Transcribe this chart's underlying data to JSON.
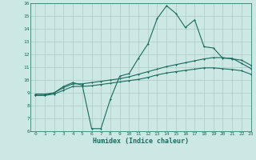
{
  "xlabel": "Humidex (Indice chaleur)",
  "ylabel": "",
  "bg_color": "#cce8e4",
  "grid_color": "#b0c8c4",
  "line_color": "#1a6b5e",
  "xlim": [
    -0.5,
    23
  ],
  "ylim": [
    6,
    16
  ],
  "xticks": [
    0,
    1,
    2,
    3,
    4,
    5,
    6,
    7,
    8,
    9,
    10,
    11,
    12,
    13,
    14,
    15,
    16,
    17,
    18,
    19,
    20,
    21,
    22,
    23
  ],
  "yticks": [
    6,
    7,
    8,
    9,
    10,
    11,
    12,
    13,
    14,
    15,
    16
  ],
  "series1_x": [
    0,
    1,
    2,
    3,
    4,
    5,
    6,
    7,
    8,
    9,
    10,
    11,
    12,
    13,
    14,
    15,
    16,
    17,
    18,
    19,
    20,
    21,
    22,
    23
  ],
  "series1_y": [
    8.8,
    8.8,
    9.0,
    9.5,
    9.8,
    9.6,
    6.2,
    6.2,
    8.5,
    10.3,
    10.5,
    11.7,
    12.8,
    14.8,
    15.8,
    15.2,
    14.1,
    14.7,
    12.6,
    12.5,
    11.7,
    11.7,
    11.3,
    10.9
  ],
  "series2_x": [
    0,
    1,
    2,
    3,
    4,
    5,
    6,
    7,
    8,
    9,
    10,
    11,
    12,
    13,
    14,
    15,
    16,
    17,
    18,
    19,
    20,
    21,
    22,
    23
  ],
  "series2_y": [
    8.9,
    8.9,
    9.0,
    9.4,
    9.7,
    9.7,
    9.8,
    9.9,
    10.0,
    10.1,
    10.25,
    10.45,
    10.65,
    10.85,
    11.05,
    11.2,
    11.35,
    11.5,
    11.65,
    11.75,
    11.75,
    11.65,
    11.55,
    11.15
  ],
  "series3_x": [
    0,
    1,
    2,
    3,
    4,
    5,
    6,
    7,
    8,
    9,
    10,
    11,
    12,
    13,
    14,
    15,
    16,
    17,
    18,
    19,
    20,
    21,
    22,
    23
  ],
  "series3_y": [
    8.8,
    8.8,
    8.9,
    9.2,
    9.5,
    9.5,
    9.55,
    9.65,
    9.75,
    9.85,
    9.95,
    10.05,
    10.2,
    10.4,
    10.55,
    10.65,
    10.75,
    10.85,
    10.95,
    10.95,
    10.88,
    10.82,
    10.72,
    10.45
  ]
}
